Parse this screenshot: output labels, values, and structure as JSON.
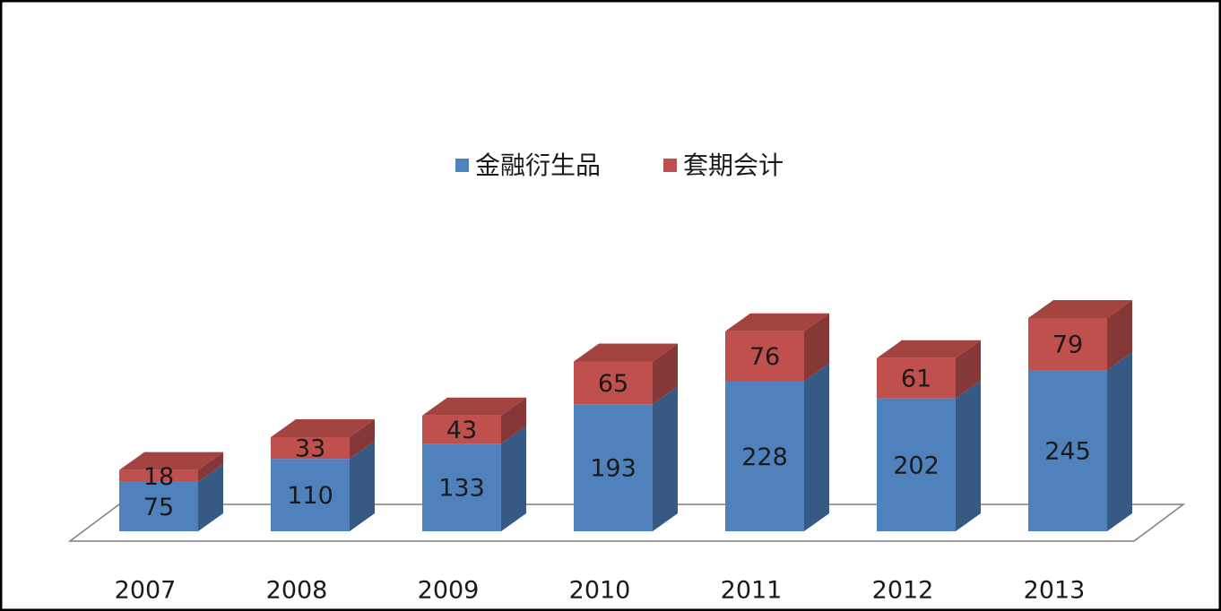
{
  "chart_data": {
    "type": "bar3d_stacked",
    "categories": [
      "2007",
      "2008",
      "2009",
      "2010",
      "2011",
      "2012",
      "2013"
    ],
    "series": [
      {
        "name": "金融衍生品",
        "color": "#4f81bd",
        "values": [
          75,
          110,
          133,
          193,
          228,
          202,
          245
        ]
      },
      {
        "name": "套期会计",
        "color": "#c0504d",
        "values": [
          18,
          33,
          43,
          65,
          76,
          61,
          79
        ]
      }
    ]
  }
}
